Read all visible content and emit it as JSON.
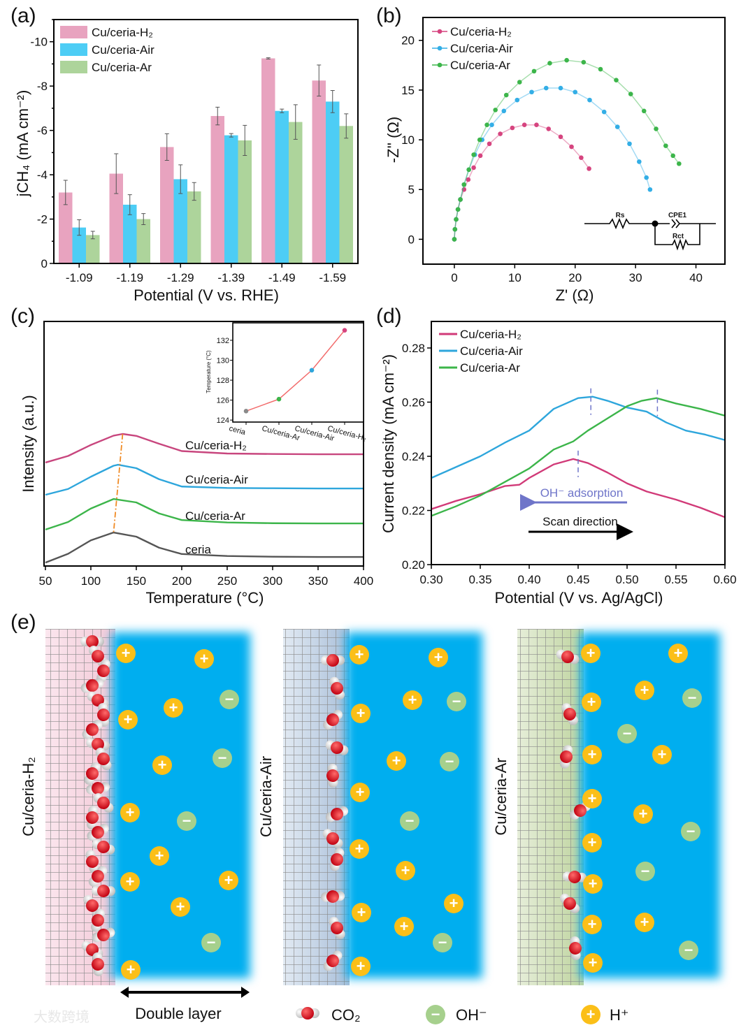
{
  "panel_labels": [
    "(a)",
    "(b)",
    "(c)",
    "(d)",
    "(e)"
  ],
  "chart_data": [
    {
      "type": "bar",
      "title": "",
      "categories": [
        "-1.09",
        "-1.19",
        "-1.29",
        "-1.39",
        "-1.49",
        "-1.59"
      ],
      "xlabel": "Potential (V vs. RHE)",
      "ylabel": "jCH₄ (mA cm⁻²)",
      "ylim": [
        0,
        -11
      ],
      "yticks": [
        0,
        -2,
        -4,
        -6,
        -8,
        -10
      ],
      "legend_position": "top-left",
      "series": [
        {
          "name": "Cu/ceria-H₂",
          "color": "#e8a3bf",
          "values": [
            -3.2,
            -4.05,
            -5.25,
            -6.65,
            -9.25,
            -8.25
          ],
          "errors": [
            0.55,
            0.9,
            0.6,
            0.4,
            0.03,
            0.7
          ]
        },
        {
          "name": "Cu/ceria-Air",
          "color": "#4dcdf5",
          "values": [
            -1.62,
            -2.65,
            -3.8,
            -5.78,
            -6.88,
            -7.3
          ],
          "errors": [
            0.35,
            0.45,
            0.65,
            0.08,
            0.08,
            0.5
          ]
        },
        {
          "name": "Cu/ceria-Ar",
          "color": "#add49b",
          "values": [
            -1.28,
            -2.0,
            -3.25,
            -5.55,
            -6.38,
            -6.2
          ],
          "errors": [
            0.17,
            0.25,
            0.4,
            0.68,
            0.78,
            0.55
          ]
        }
      ]
    },
    {
      "type": "scatter",
      "title": "",
      "xlabel": "Z' (Ω)",
      "ylabel": "-Z'' (Ω)",
      "xlim": [
        -5.2,
        44.8
      ],
      "ylim": [
        -2.5,
        22.3
      ],
      "xticks": [
        0,
        10,
        20,
        30,
        40
      ],
      "yticks": [
        0,
        5,
        10,
        15,
        20
      ],
      "legend_position": "top-left",
      "inset_circuit": {
        "labels": [
          "Rs",
          "CPE1",
          "Rct"
        ]
      },
      "series": [
        {
          "name": "Cu/ceria-H₂",
          "color": "#d6447f",
          "points": [
            [
              0,
              0
            ],
            [
              0.1,
              1
            ],
            [
              0.3,
              2
            ],
            [
              0.6,
              3
            ],
            [
              1,
              4
            ],
            [
              1.6,
              5
            ],
            [
              2.3,
              6
            ],
            [
              3.2,
              7.2
            ],
            [
              4.3,
              8.4
            ],
            [
              5.8,
              9.6
            ],
            [
              7.6,
              10.6
            ],
            [
              9.6,
              11.2
            ],
            [
              11.6,
              11.5
            ],
            [
              13.6,
              11.5
            ],
            [
              15.6,
              11.1
            ],
            [
              17.6,
              10.3
            ],
            [
              19.4,
              9.3
            ],
            [
              21,
              8.2
            ],
            [
              22.3,
              7.1
            ]
          ]
        },
        {
          "name": "Cu/ceria-Air",
          "color": "#33aee6",
          "points": [
            [
              0,
              0
            ],
            [
              0.1,
              1
            ],
            [
              0.3,
              2
            ],
            [
              0.6,
              3
            ],
            [
              1,
              4
            ],
            [
              1.6,
              5.5
            ],
            [
              2.4,
              7
            ],
            [
              3.4,
              8.5
            ],
            [
              4.6,
              10
            ],
            [
              6.2,
              11.5
            ],
            [
              8.2,
              12.9
            ],
            [
              10.4,
              14
            ],
            [
              12.8,
              14.8
            ],
            [
              15.2,
              15.2
            ],
            [
              17.6,
              15.2
            ],
            [
              20,
              14.8
            ],
            [
              22.4,
              14
            ],
            [
              24.8,
              12.8
            ],
            [
              27,
              11.3
            ],
            [
              29,
              9.6
            ],
            [
              30.6,
              7.8
            ],
            [
              31.8,
              6.2
            ],
            [
              32.4,
              5
            ]
          ]
        },
        {
          "name": "Cu/ceria-Ar",
          "color": "#3cb54a",
          "points": [
            [
              0,
              0
            ],
            [
              0.1,
              1
            ],
            [
              0.3,
              2
            ],
            [
              0.6,
              3
            ],
            [
              1,
              4
            ],
            [
              1.6,
              5.5
            ],
            [
              2.4,
              7
            ],
            [
              3.2,
              8.5
            ],
            [
              4.2,
              10
            ],
            [
              5.4,
              11.5
            ],
            [
              6.8,
              13
            ],
            [
              8.6,
              14.5
            ],
            [
              10.8,
              15.8
            ],
            [
              13.2,
              16.9
            ],
            [
              15.8,
              17.7
            ],
            [
              18.6,
              18
            ],
            [
              21.4,
              17.8
            ],
            [
              24.2,
              17.1
            ],
            [
              26.8,
              16
            ],
            [
              29.2,
              14.6
            ],
            [
              31.4,
              12.9
            ],
            [
              33.4,
              11.1
            ],
            [
              35,
              9.4
            ],
            [
              36.2,
              8.4
            ],
            [
              37.2,
              7.6
            ]
          ]
        }
      ]
    },
    {
      "type": "line",
      "title": "",
      "xlabel": "Temperature (°C)",
      "ylabel": "Intensity (a.u.)",
      "xlim": [
        48.5,
        400
      ],
      "ylim": [
        0,
        100
      ],
      "xticks": [
        50,
        100,
        150,
        200,
        250,
        300,
        350,
        400
      ],
      "series": [
        {
          "name": "Cu/ceria-H₂",
          "color": "#c8467e",
          "x": [
            50,
            75,
            100,
            125,
            135,
            150,
            175,
            200,
            250,
            300,
            350,
            400
          ],
          "y": [
            42.3,
            45,
            49.5,
            53.3,
            54,
            53.2,
            50,
            47,
            46,
            45.8,
            45.7,
            45.7
          ]
        },
        {
          "name": "Cu/ceria-Air",
          "color": "#2ea6dc",
          "x": [
            50,
            75,
            100,
            125,
            130,
            150,
            175,
            200,
            250,
            300,
            350,
            400
          ],
          "y": [
            29.1,
            31.5,
            36.5,
            41,
            41.4,
            40,
            35.5,
            32.5,
            31.9,
            31.8,
            31.7,
            31.7
          ]
        },
        {
          "name": "Cu/ceria-Ar",
          "color": "#3cb54a",
          "x": [
            50,
            75,
            100,
            125,
            150,
            175,
            200,
            250,
            300,
            350,
            400
          ],
          "y": [
            14.9,
            18,
            23.5,
            27.4,
            26,
            21.5,
            18.8,
            17.8,
            17.5,
            17.4,
            17.4
          ]
        },
        {
          "name": "ceria",
          "color": "#555555",
          "x": [
            50,
            75,
            100,
            125,
            150,
            175,
            200,
            250,
            300,
            350,
            400
          ],
          "y": [
            1.4,
            5,
            10.5,
            13.7,
            12,
            7.5,
            4.9,
            4.1,
            3.8,
            3.7,
            3.7
          ]
        }
      ],
      "peak_guide": {
        "from": [
          135,
          54
        ],
        "to": [
          125,
          13.7
        ],
        "color": "#f08a24"
      },
      "inset": {
        "type": "line",
        "ylabel": "Temperature (°C)",
        "categories": [
          "ceria",
          "Cu/ceria-Ar",
          "Cu/ceria-Air",
          "Cu/ceria-H₂"
        ],
        "values": [
          124.9,
          126.1,
          129.0,
          133.0
        ],
        "colors": [
          "#8a8a8a",
          "#3cb54a",
          "#2ea6dc",
          "#d6447f"
        ],
        "line_color": "#f26b6b",
        "ylim": [
          123.8,
          133.75
        ],
        "yticks": [
          124,
          126,
          128,
          130,
          132
        ]
      }
    },
    {
      "type": "line",
      "title": "",
      "xlabel": "Potential (V vs. Ag/AgCl)",
      "ylabel": "Current density (mA cm⁻²)",
      "xlim": [
        0.3,
        0.6
      ],
      "ylim": [
        0.2,
        0.2898
      ],
      "xticks": [
        "0.30",
        "0.35",
        "0.40",
        "0.45",
        "0.50",
        "0.55",
        "0.60"
      ],
      "yticks": [
        "0.20",
        "0.22",
        "0.24",
        "0.26",
        "0.28"
      ],
      "legend_position": "top-left",
      "series": [
        {
          "name": "Cu/ceria-H₂",
          "color": "#d13a78",
          "x": [
            0.3,
            0.325,
            0.35,
            0.375,
            0.39,
            0.4,
            0.425,
            0.445,
            0.46,
            0.48,
            0.5,
            0.52,
            0.55,
            0.575,
            0.6
          ],
          "y": [
            0.2205,
            0.2235,
            0.226,
            0.229,
            0.2295,
            0.232,
            0.237,
            0.239,
            0.2375,
            0.234,
            0.23,
            0.227,
            0.224,
            0.221,
            0.2175
          ],
          "peak": 0.45
        },
        {
          "name": "Cu/ceria-Air",
          "color": "#2ea6dc",
          "x": [
            0.3,
            0.325,
            0.35,
            0.375,
            0.4,
            0.425,
            0.45,
            0.465,
            0.48,
            0.5,
            0.52,
            0.54,
            0.56,
            0.58,
            0.6
          ],
          "y": [
            0.232,
            0.236,
            0.24,
            0.245,
            0.2495,
            0.2575,
            0.2615,
            0.262,
            0.2605,
            0.258,
            0.2565,
            0.2525,
            0.2495,
            0.248,
            0.246
          ],
          "peak": 0.463
        },
        {
          "name": "Cu/ceria-Ar",
          "color": "#3cb54a",
          "x": [
            0.3,
            0.325,
            0.35,
            0.375,
            0.4,
            0.425,
            0.445,
            0.46,
            0.48,
            0.5,
            0.515,
            0.53,
            0.55,
            0.575,
            0.6
          ],
          "y": [
            0.218,
            0.2215,
            0.2255,
            0.2305,
            0.2355,
            0.2425,
            0.2455,
            0.2495,
            0.254,
            0.2585,
            0.2605,
            0.2615,
            0.2595,
            0.2575,
            0.255
          ],
          "peak": 0.531
        }
      ],
      "annotations": [
        {
          "text": "OH⁻ adsorption",
          "color": "#6f75c9",
          "arrow_from": 0.5,
          "arrow_to": 0.4
        },
        {
          "text": "Scan direction",
          "color": "#000000",
          "arrow_from": 0.41,
          "arrow_to": 0.51
        }
      ]
    }
  ],
  "schematic": {
    "panels": [
      "Cu/ceria-H₂",
      "Cu/ceria-Air",
      "Cu/ceria-Ar"
    ],
    "double_layer": "Double layer",
    "legend": {
      "co2": "CO₂",
      "oh": "OH⁻",
      "h": "H⁺"
    },
    "ion_symbols": {
      "h": "+",
      "oh": "−"
    },
    "colors": {
      "electrolyte": "#00aeef",
      "h_ion": "#fbbf18",
      "oh_ion": "#a6d08d",
      "carbon": "#e60012"
    }
  },
  "watermark": "大数跨境"
}
